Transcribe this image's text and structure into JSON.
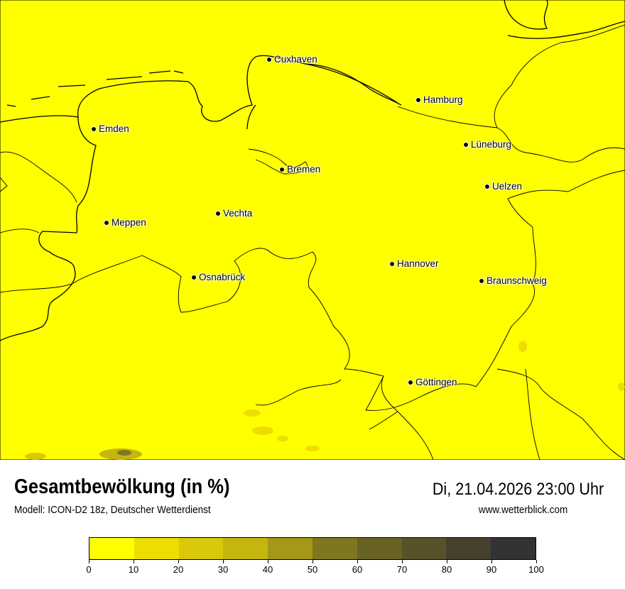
{
  "map": {
    "background_color": "#ffff00",
    "cities": [
      {
        "name": "Cuxhaven"
      },
      {
        "name": "Hamburg"
      },
      {
        "name": "Emden"
      },
      {
        "name": "Lüneburg"
      },
      {
        "name": "Bremen"
      },
      {
        "name": "Uelzen"
      },
      {
        "name": "Vechta"
      },
      {
        "name": "Meppen"
      },
      {
        "name": "Hannover"
      },
      {
        "name": "Osnabrück"
      },
      {
        "name": "Braunschweig"
      },
      {
        "name": "Göttingen"
      }
    ]
  },
  "header": {
    "title": "Gesamtbewölkung (in %)",
    "subtitle": "Modell: ICON-D2 18z, Deutscher Wetterdienst",
    "datetime": "Di, 21.04.2026 23:00 Uhr",
    "website": "www.wetterblick.com"
  },
  "colorbar": {
    "colors": [
      "#ffff00",
      "#eedd00",
      "#dac90a",
      "#c5b50f",
      "#a39818",
      "#7f7620",
      "#696225",
      "#58522a",
      "#45412e",
      "#333333"
    ],
    "ticks": [
      "0",
      "10",
      "20",
      "30",
      "40",
      "50",
      "60",
      "70",
      "80",
      "90",
      "100"
    ]
  }
}
